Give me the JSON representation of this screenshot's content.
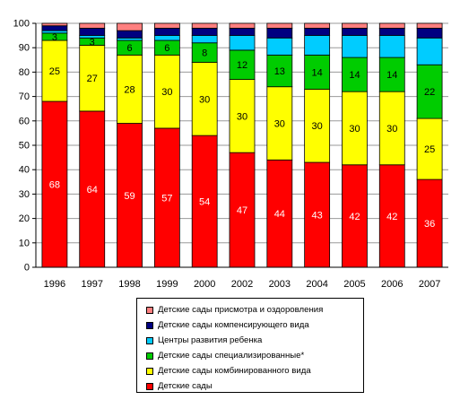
{
  "chart_data": {
    "type": "bar",
    "stacked": true,
    "categories": [
      "1996",
      "1997",
      "1998",
      "1999",
      "2000",
      "2002",
      "2003",
      "2004",
      "2005",
      "2006",
      "2007"
    ],
    "ylim": [
      0,
      100
    ],
    "yticks": [
      0,
      10,
      20,
      30,
      40,
      50,
      60,
      70,
      80,
      90,
      100
    ],
    "legend_position": "bottom",
    "series": [
      {
        "name": "Детские сады",
        "color": "#ff0000",
        "label_color": "#ffffff",
        "values": [
          68,
          64,
          59,
          57,
          54,
          47,
          44,
          43,
          42,
          42,
          36
        ],
        "labels": [
          "68",
          "64",
          "59",
          "57",
          "54",
          "47",
          "44",
          "43",
          "42",
          "42",
          "36"
        ]
      },
      {
        "name": "Детские сады комбинированного вида",
        "color": "#ffff00",
        "label_color": "#000000",
        "values": [
          25,
          27,
          28,
          30,
          30,
          30,
          30,
          30,
          30,
          30,
          25
        ],
        "labels": [
          "25",
          "27",
          "28",
          "30",
          "30",
          "30",
          "30",
          "30",
          "30",
          "30",
          "25"
        ]
      },
      {
        "name": "Детские сады специализированные*",
        "color": "#00cc00",
        "label_color": "#000000",
        "values": [
          3,
          3,
          6,
          6,
          8,
          12,
          13,
          14,
          14,
          14,
          22
        ],
        "labels": [
          "3",
          "3",
          "6",
          "6",
          "8",
          "12",
          "13",
          "14",
          "14",
          "14",
          "22"
        ]
      },
      {
        "name": "Центры развития ребенка",
        "color": "#00ccff",
        "label_color": "#000000",
        "values": [
          1,
          1,
          1,
          2,
          3,
          6,
          7,
          8,
          9,
          9,
          11
        ],
        "labels": []
      },
      {
        "name": "Детские сады компенсирующего вида",
        "color": "#000080",
        "label_color": "#ffffff",
        "values": [
          2,
          3,
          3,
          3,
          3,
          3,
          4,
          3,
          3,
          3,
          4
        ],
        "labels": []
      },
      {
        "name": "Детские сады присмотра и оздоровления",
        "color": "#ff8080",
        "label_color": "#000000",
        "values": [
          1,
          2,
          3,
          2,
          2,
          2,
          2,
          2,
          2,
          2,
          2
        ],
        "labels": []
      }
    ]
  }
}
